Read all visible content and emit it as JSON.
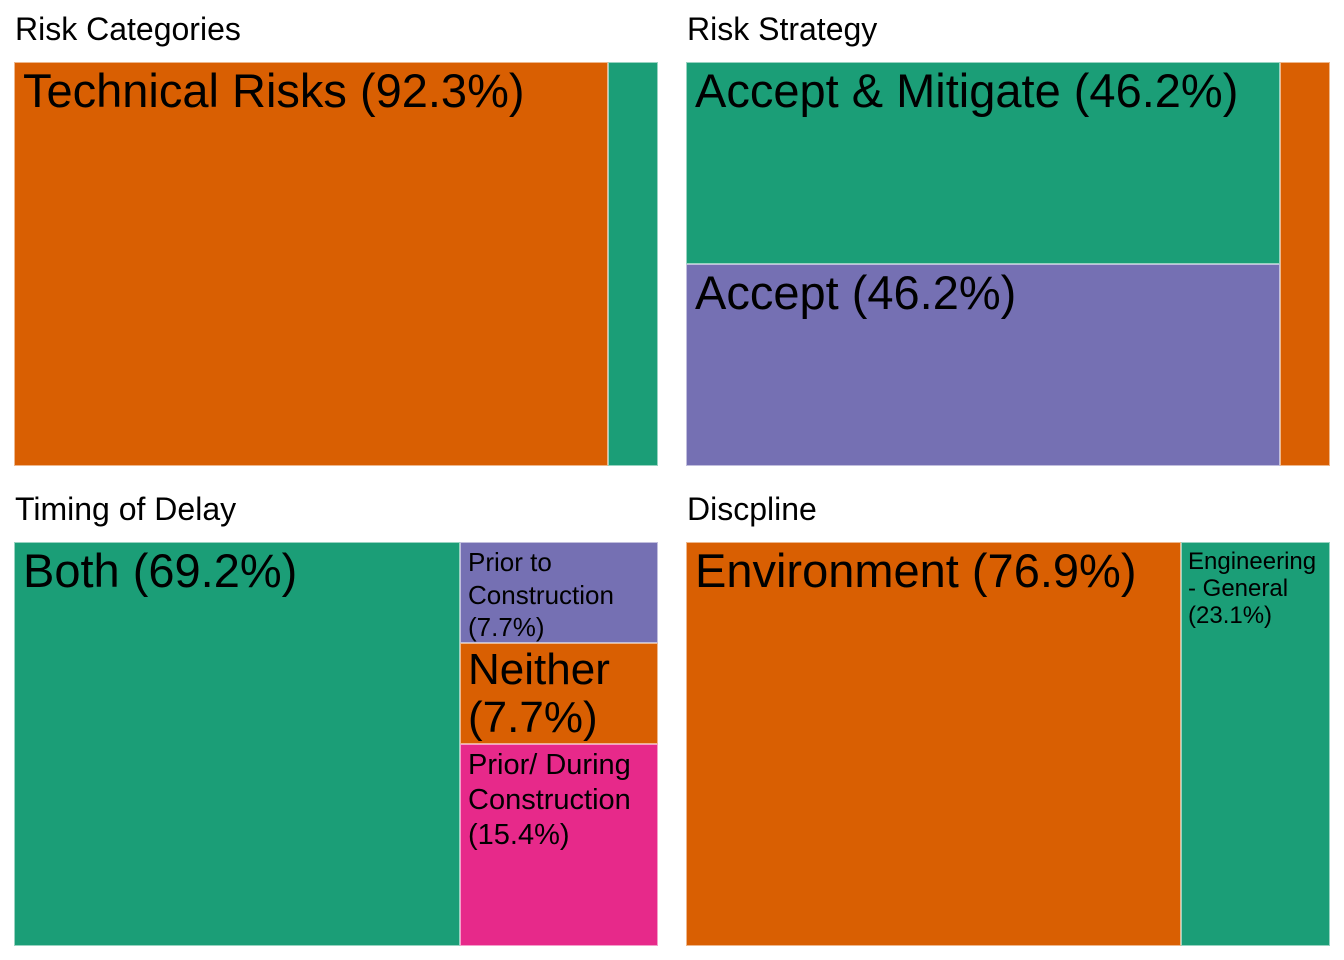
{
  "colors": {
    "teal": "#1b9e77",
    "orange": "#d95f02",
    "purple": "#7570b3",
    "pink": "#e7298a"
  },
  "chart_data": [
    {
      "type": "treemap",
      "title": "Risk Categories",
      "items": [
        {
          "label": "Technical Risks (92.3%)",
          "value": 92.3,
          "color": "#d95f02"
        },
        {
          "label": "",
          "value": 7.7,
          "color": "#1b9e77"
        }
      ]
    },
    {
      "type": "treemap",
      "title": "Risk Strategy",
      "items": [
        {
          "label": "Accept & Mitigate (46.2%)",
          "value": 46.2,
          "color": "#1b9e77"
        },
        {
          "label": "Accept (46.2%)",
          "value": 46.2,
          "color": "#7570b3"
        },
        {
          "label": "",
          "value": 7.7,
          "color": "#d95f02"
        }
      ]
    },
    {
      "type": "treemap",
      "title": "Timing of Delay",
      "items": [
        {
          "label": "Both (69.2%)",
          "value": 69.2,
          "color": "#1b9e77"
        },
        {
          "label": "Prior to Construction (7.7%)",
          "value": 7.7,
          "color": "#7570b3"
        },
        {
          "label": "Neither (7.7%)",
          "value": 7.7,
          "color": "#d95f02"
        },
        {
          "label": "Prior/ During Construction (15.4%)",
          "value": 15.4,
          "color": "#e7298a"
        }
      ]
    },
    {
      "type": "treemap",
      "title": "Discpline",
      "items": [
        {
          "label": "Environment (76.9%)",
          "value": 76.9,
          "color": "#d95f02"
        },
        {
          "label": "Engineering - General (23.1%)",
          "value": 23.1,
          "color": "#1b9e77"
        }
      ]
    }
  ]
}
